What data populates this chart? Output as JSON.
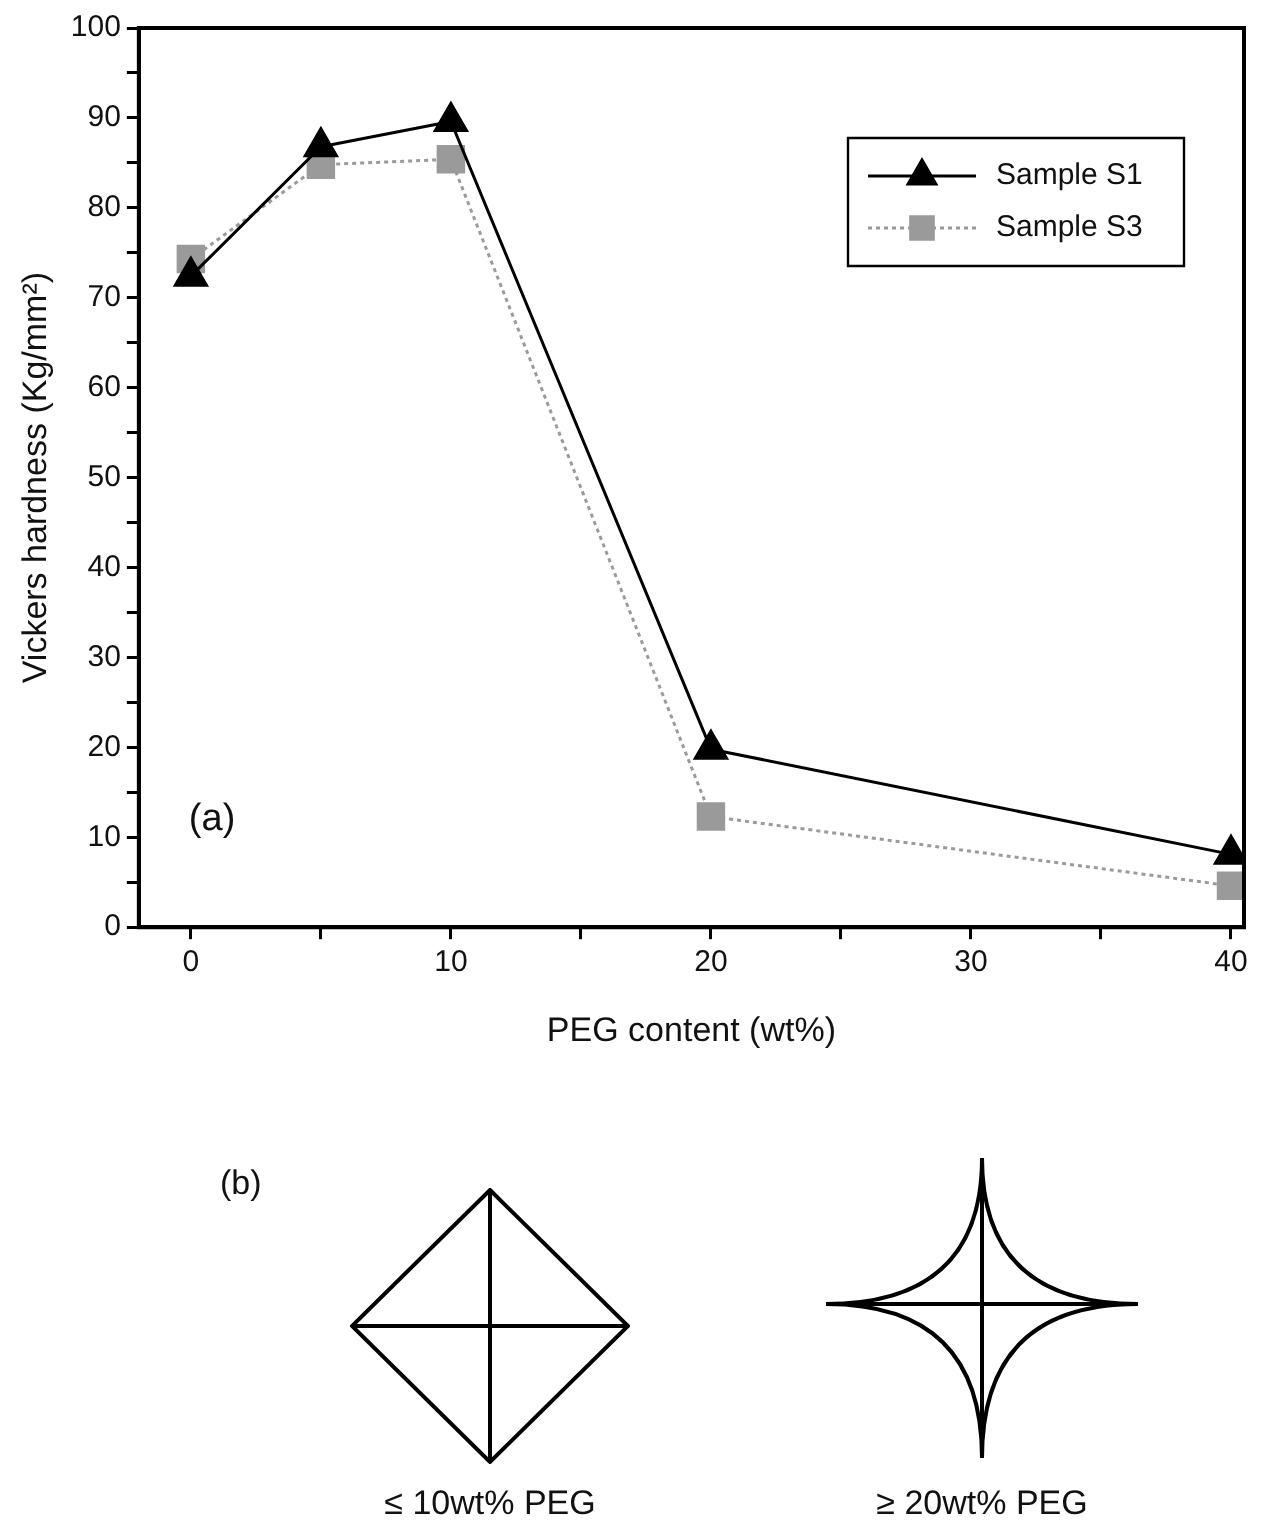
{
  "chart_data": {
    "type": "line",
    "xlabel": "PEG content (wt%)",
    "ylabel": "Vickers hardness (Kg/mm²)",
    "x": [
      0,
      5,
      10,
      20,
      40
    ],
    "series": [
      {
        "name": "Sample S1",
        "color": "#000000",
        "marker": "triangle",
        "line_style": "solid",
        "values": [
          72.4,
          86.8,
          89.6,
          19.8,
          8.1
        ]
      },
      {
        "name": "Sample S3",
        "color": "#9a9a9a",
        "marker": "square",
        "line_style": "dotted",
        "values": [
          74.3,
          84.8,
          85.4,
          12.3,
          4.6
        ]
      }
    ],
    "xlim": [
      -2,
      40.5
    ],
    "xticks": [
      0,
      {
        "value": 5,
        "label": null
      },
      10,
      {
        "value": 15,
        "label": null
      },
      20,
      {
        "value": 25,
        "label": null
      },
      30,
      {
        "value": 35,
        "label": null
      },
      40
    ],
    "ylim": [
      0,
      100
    ],
    "yticks": [
      0,
      {
        "value": 5,
        "label": null
      },
      10,
      {
        "value": 15,
        "label": null
      },
      20,
      {
        "value": 25,
        "label": null
      },
      30,
      {
        "value": 35,
        "label": null
      },
      40,
      {
        "value": 45,
        "label": null
      },
      50,
      {
        "value": 55,
        "label": null
      },
      60,
      {
        "value": 65,
        "label": null
      },
      70,
      {
        "value": 75,
        "label": null
      },
      80,
      {
        "value": 85,
        "label": null
      },
      90,
      {
        "value": 95,
        "label": null
      },
      100
    ],
    "grid": false,
    "legend": "top right",
    "annotations": [
      "(a)",
      "(b)",
      "≤ 10wt% PEG",
      "≥ 20wt% PEG"
    ]
  }
}
